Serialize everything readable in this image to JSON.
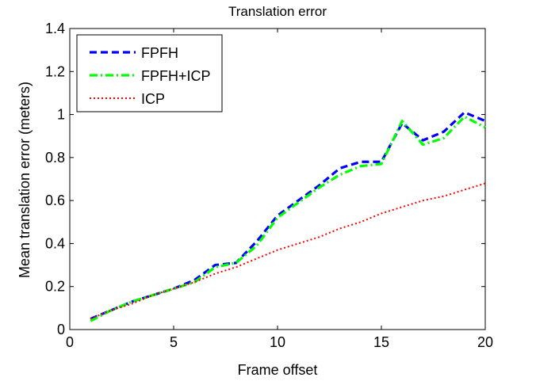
{
  "chart_data": {
    "type": "line",
    "title": "Translation error",
    "xlabel": "Frame offset",
    "ylabel": "Mean translation error (meters)",
    "xlim": [
      0,
      20
    ],
    "ylim": [
      0,
      1.4
    ],
    "xticks": [
      0,
      5,
      10,
      15,
      20
    ],
    "xtick_labels": [
      "0",
      "5",
      "10",
      "15",
      "20"
    ],
    "yticks": [
      0,
      0.2,
      0.4,
      0.6,
      0.8,
      1.0,
      1.2,
      1.4
    ],
    "ytick_labels": [
      "0",
      "0.2",
      "0.4",
      "0.6",
      "0.8",
      "1",
      "1.2",
      "1.4"
    ],
    "grid": false,
    "legend_position": "top-left",
    "x": [
      1,
      2,
      3,
      4,
      5,
      6,
      7,
      8,
      9,
      10,
      11,
      12,
      13,
      14,
      15,
      16,
      17,
      18,
      19,
      20
    ],
    "series": [
      {
        "name": "FPFH",
        "color": "#0000ff",
        "style": "dashed",
        "values": [
          0.05,
          0.09,
          0.13,
          0.16,
          0.19,
          0.23,
          0.3,
          0.31,
          0.41,
          0.53,
          0.6,
          0.67,
          0.75,
          0.78,
          0.78,
          0.96,
          0.88,
          0.92,
          1.01,
          0.97
        ]
      },
      {
        "name": "FPFH+ICP",
        "color": "#00ff00",
        "style": "dash-dot",
        "values": [
          0.04,
          0.09,
          0.13,
          0.16,
          0.19,
          0.22,
          0.29,
          0.31,
          0.39,
          0.52,
          0.59,
          0.66,
          0.72,
          0.76,
          0.77,
          0.97,
          0.86,
          0.89,
          0.99,
          0.94
        ]
      },
      {
        "name": "ICP",
        "color": "#ff0000",
        "style": "dotted",
        "values": [
          0.05,
          0.09,
          0.12,
          0.16,
          0.19,
          0.22,
          0.26,
          0.29,
          0.33,
          0.37,
          0.4,
          0.43,
          0.47,
          0.5,
          0.54,
          0.57,
          0.6,
          0.62,
          0.65,
          0.68
        ]
      }
    ]
  }
}
